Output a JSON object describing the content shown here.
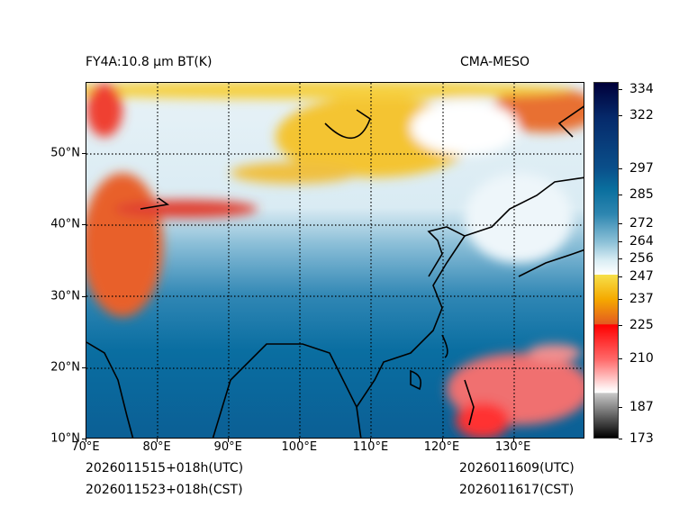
{
  "title_left": "FY4A:10.8 µm BT(K)",
  "title_right": "CMA-MESO",
  "x_ticks": [
    "70°E",
    "80°E",
    "90°E",
    "100°E",
    "110°E",
    "120°E",
    "130°E"
  ],
  "y_ticks": [
    "10°N",
    "20°N",
    "30°N",
    "40°N",
    "50°N"
  ],
  "colorbar": {
    "unit": "K",
    "ticks": [
      "334",
      "322",
      "297",
      "285",
      "272",
      "264",
      "256",
      "247",
      "237",
      "225",
      "210",
      "187",
      "173"
    ]
  },
  "footer": {
    "init_utc": "2026011515+018h(UTC)",
    "init_cst": "2026011523+018h(CST)",
    "valid_utc": "2026011609(UTC)",
    "valid_cst": "2026011617(CST)"
  },
  "map_extent": {
    "lon": [
      70,
      140
    ],
    "lat": [
      10,
      60
    ]
  }
}
